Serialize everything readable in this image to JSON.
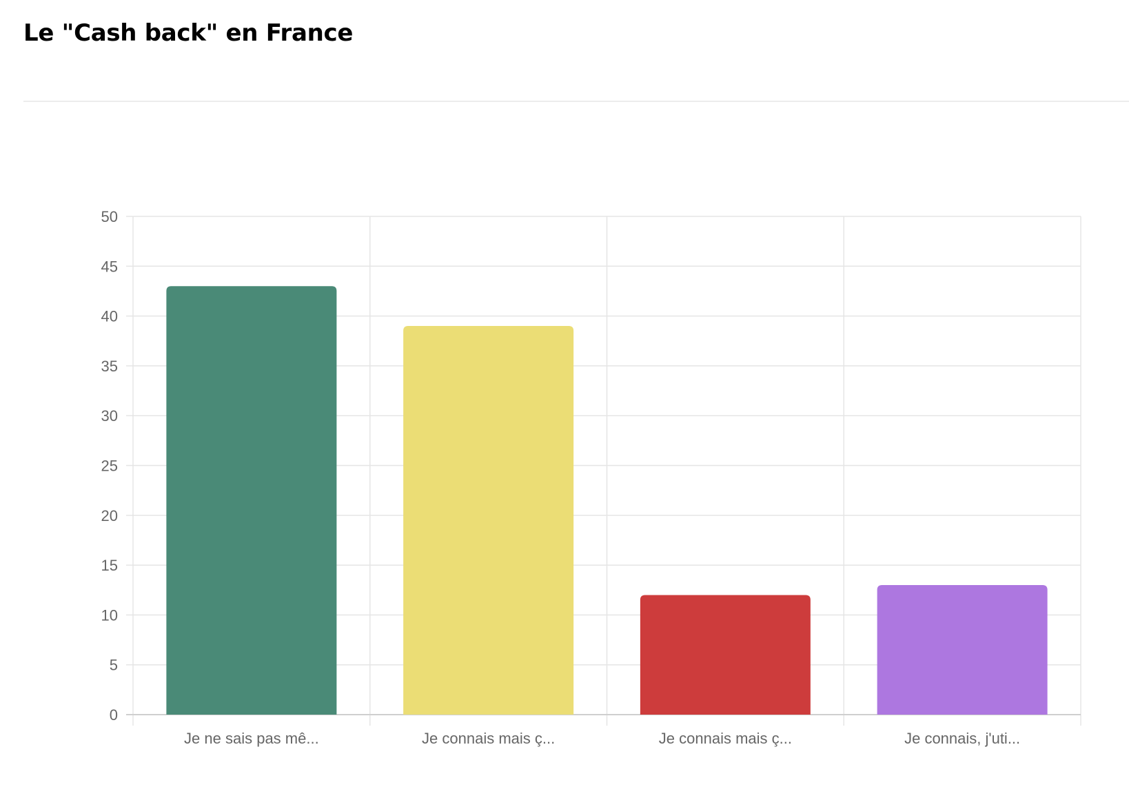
{
  "page": {
    "title": "Le \"Cash back\" en France"
  },
  "chart_data": {
    "type": "bar",
    "title": "",
    "xlabel": "",
    "ylabel": "",
    "categories": [
      "Je ne sais pas mê...",
      "Je connais mais ç...",
      "Je connais mais ç...",
      "Je connais, j'uti..."
    ],
    "values": [
      43,
      39,
      12,
      13
    ],
    "colors": [
      "#4a8a77",
      "#ebdd75",
      "#cd3c3c",
      "#ad77e0"
    ],
    "ylim": [
      0,
      50
    ],
    "yticks": [
      0,
      5,
      10,
      15,
      20,
      25,
      30,
      35,
      40,
      45,
      50
    ],
    "grid": true,
    "legend": "none",
    "grid_color": "#e5e5e5",
    "tick_label_color": "#666666"
  }
}
